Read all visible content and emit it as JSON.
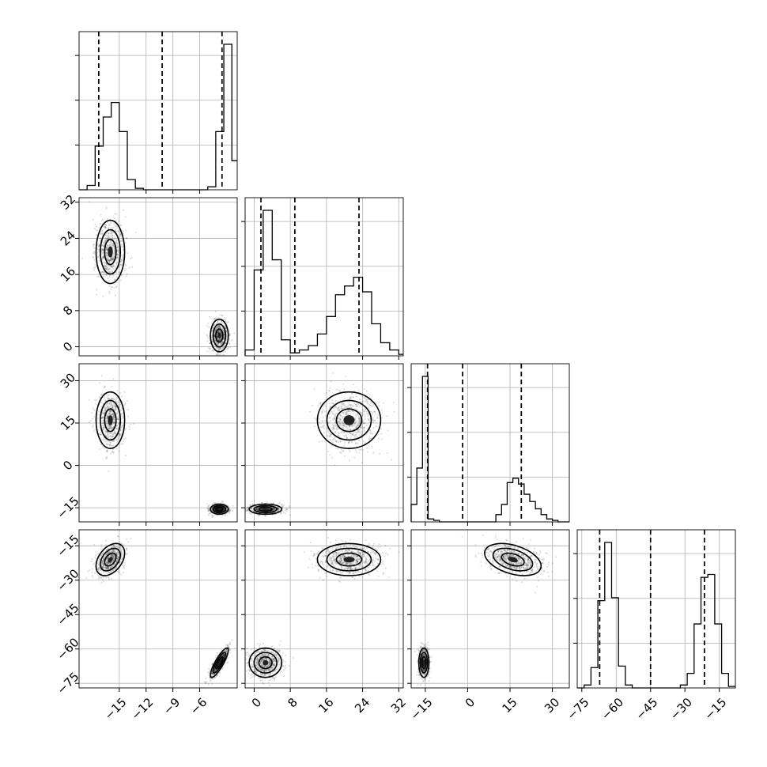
{
  "chart_data": {
    "type": "corner",
    "parameters": 4,
    "grid": true,
    "quantile_lines": "dashed",
    "colors": {
      "line": "#000000",
      "grid": "#b0b0b0",
      "points": "#000000"
    },
    "ranges": [
      [
        -19.5,
        -1.8
      ],
      [
        -2,
        33
      ],
      [
        -20,
        36
      ],
      [
        -77,
        -8
      ]
    ],
    "ticks": [
      [
        -15,
        -12,
        -9,
        -6
      ],
      [
        0,
        8,
        16,
        24,
        32
      ],
      [
        -15,
        0,
        15,
        30
      ],
      [
        -75,
        -60,
        -45,
        -30,
        -15
      ]
    ],
    "tick_labels": [
      [
        "−15",
        "−12",
        "−9",
        "−6"
      ],
      [
        "0",
        "8",
        "16",
        "24",
        "32"
      ],
      [
        "−15",
        "0",
        "15",
        "30"
      ],
      [
        "−75",
        "−60",
        "−45",
        "−30",
        "−15"
      ]
    ],
    "quantiles": [
      [
        -17.3,
        -10.2,
        -3.5
      ],
      [
        1.5,
        9.0,
        23.2
      ],
      [
        -14.2,
        -1.8,
        19.0
      ],
      [
        -67.2,
        -45.0,
        -21.5
      ]
    ],
    "histograms": [
      {
        "bin_edges": [
          -19.5,
          -18.6,
          -17.7,
          -16.8,
          -15.9,
          -15.0,
          -14.1,
          -13.2,
          -12.3,
          -11.4,
          -10.5,
          -9.6,
          -8.7,
          -7.8,
          -6.9,
          -6.0,
          -5.1,
          -4.2,
          -3.3,
          -2.4,
          -1.8
        ],
        "counts": [
          0,
          0.03,
          0.3,
          0.5,
          0.6,
          0.4,
          0.07,
          0.01,
          0,
          0,
          0,
          0,
          0,
          0,
          0,
          0,
          0.02,
          0.4,
          1.0,
          0.2
        ]
      },
      {
        "bin_edges": [
          -2,
          0,
          2,
          4,
          6,
          8,
          10,
          12,
          14,
          16,
          18,
          20,
          22,
          24,
          26,
          28,
          30,
          32,
          33
        ],
        "counts": [
          0.04,
          0.59,
          1.0,
          0.66,
          0.11,
          0.02,
          0.04,
          0.07,
          0.15,
          0.27,
          0.42,
          0.48,
          0.54,
          0.44,
          0.22,
          0.09,
          0.04,
          0.01
        ]
      },
      {
        "bin_edges": [
          -20,
          -18,
          -16,
          -14,
          -12,
          -10,
          -8,
          -6,
          -4,
          -2,
          0,
          2,
          4,
          6,
          8,
          10,
          12,
          14,
          16,
          18,
          20,
          22,
          24,
          26,
          28,
          30,
          32,
          34,
          36
        ],
        "counts": [
          0.12,
          0.37,
          1.0,
          0.02,
          0.01,
          0,
          0,
          0,
          0,
          0,
          0,
          0,
          0,
          0,
          0,
          0.05,
          0.12,
          0.27,
          0.3,
          0.26,
          0.19,
          0.14,
          0.09,
          0.05,
          0.02,
          0.01,
          0,
          0
        ]
      },
      {
        "bin_edges": [
          -77,
          -74,
          -71,
          -68,
          -65,
          -62,
          -59,
          -56,
          -53,
          -50,
          -47,
          -44,
          -41,
          -38,
          -35,
          -32,
          -29,
          -26,
          -23,
          -20,
          -17,
          -14,
          -11,
          -8
        ],
        "counts": [
          0,
          0.02,
          0.14,
          0.6,
          1.0,
          0.62,
          0.15,
          0.02,
          0,
          0,
          0,
          0,
          0,
          0,
          0,
          0.02,
          0.1,
          0.44,
          0.76,
          0.78,
          0.44,
          0.1,
          0.01
        ]
      }
    ],
    "modes": [
      {
        "weight": 0.5,
        "mean": [
          -16.0,
          21.0,
          16.0,
          -21.0
        ],
        "sd": [
          0.8,
          3.5,
          5.0,
          3.5
        ],
        "corr": [
          [
            1,
            0,
            0,
            0.4
          ],
          [
            0,
            1,
            0,
            0
          ],
          [
            0,
            0,
            1,
            -0.4
          ],
          [
            0.4,
            0,
            -0.4,
            1
          ]
        ]
      },
      {
        "weight": 0.5,
        "mean": [
          -3.8,
          2.5,
          -15.5,
          -66.0
        ],
        "sd": [
          0.5,
          1.8,
          0.9,
          3.2
        ],
        "corr": [
          [
            1,
            0,
            0,
            0.85
          ],
          [
            0,
            1,
            0,
            0
          ],
          [
            0,
            0,
            1,
            0
          ],
          [
            0.85,
            0,
            0,
            1
          ]
        ]
      }
    ]
  }
}
